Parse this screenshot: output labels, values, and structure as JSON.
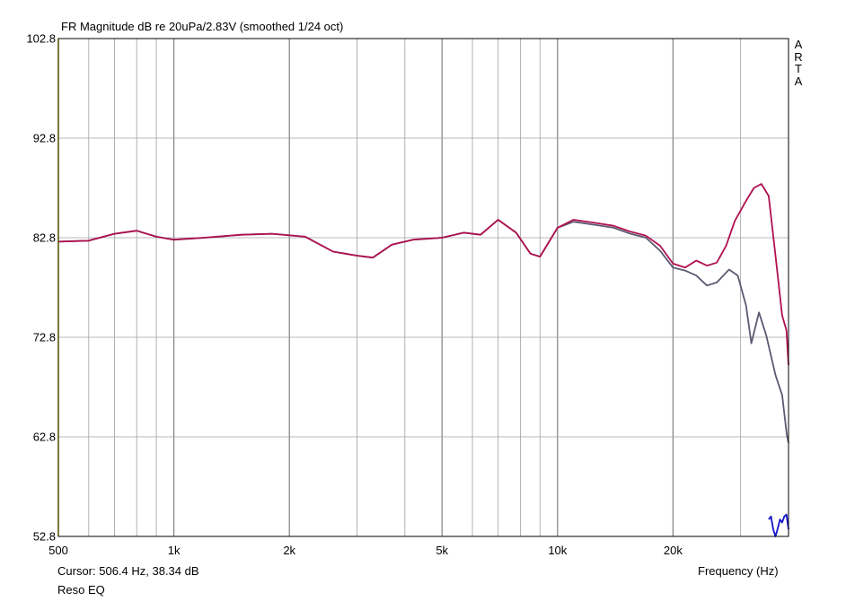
{
  "chart_data": {
    "type": "line",
    "title": "FR Magnitude dB re 20uPa/2.83V (smoothed 1/24 oct)",
    "xlabel": "Frequency (Hz)",
    "ylabel": "",
    "xscale": "log",
    "xlim": [
      500,
      40000
    ],
    "ylim": [
      52.8,
      102.8
    ],
    "x_ticks": [
      500,
      1000,
      2000,
      5000,
      10000,
      20000
    ],
    "x_tick_labels": [
      "500",
      "1k",
      "2k",
      "5k",
      "10k",
      "20k"
    ],
    "y_ticks": [
      52.8,
      62.8,
      72.8,
      82.8,
      92.8,
      102.8
    ],
    "y_tick_labels": [
      "52.8",
      "62.8",
      "72.8",
      "82.8",
      "92.8",
      "102.8"
    ],
    "grid": true,
    "series": [
      {
        "color": "#5a5a72",
        "x": [
          500,
          600,
          700,
          800,
          900,
          1000,
          1200,
          1500,
          1800,
          2200,
          2600,
          3000,
          3300,
          3700,
          4200,
          5000,
          5700,
          6300,
          7000,
          7800,
          8500,
          9000,
          10000,
          11000,
          12500,
          14000,
          15500,
          17000,
          18500,
          20000,
          21500,
          23000,
          24500,
          26000,
          28000,
          29500,
          31000,
          32000,
          33500,
          35000,
          37000,
          38500,
          39600,
          40000
        ],
        "y": [
          82.4,
          82.5,
          83.2,
          83.5,
          82.9,
          82.6,
          82.8,
          83.1,
          83.2,
          82.9,
          81.4,
          81.0,
          80.8,
          82.1,
          82.6,
          82.8,
          83.3,
          83.1,
          84.6,
          83.3,
          81.2,
          80.9,
          83.8,
          84.4,
          84.1,
          83.8,
          83.2,
          82.8,
          81.5,
          79.8,
          79.5,
          79.0,
          78.0,
          78.3,
          79.6,
          79.0,
          76.0,
          72.2,
          75.3,
          73.0,
          69.0,
          67.0,
          63.0,
          62.2
        ]
      },
      {
        "color": "#b01050",
        "x": [
          500,
          600,
          700,
          800,
          900,
          1000,
          1200,
          1500,
          1800,
          2200,
          2600,
          3000,
          3300,
          3700,
          4200,
          5000,
          5700,
          6300,
          7000,
          7800,
          8500,
          9000,
          10000,
          11000,
          12500,
          14000,
          15500,
          17000,
          18500,
          20000,
          21500,
          23000,
          24500,
          26000,
          27500,
          29000,
          31000,
          32500,
          34000,
          35500,
          37000,
          38500,
          39500,
          40000
        ],
        "y": [
          82.4,
          82.5,
          83.2,
          83.5,
          82.9,
          82.6,
          82.8,
          83.1,
          83.2,
          82.9,
          81.4,
          81.0,
          80.8,
          82.1,
          82.6,
          82.8,
          83.3,
          83.1,
          84.6,
          83.3,
          81.2,
          80.9,
          83.8,
          84.6,
          84.3,
          84.0,
          83.4,
          83.0,
          82.0,
          80.2,
          79.8,
          80.5,
          80.0,
          80.3,
          82.0,
          84.5,
          86.5,
          87.8,
          88.2,
          87.0,
          81.0,
          75.0,
          73.5,
          70.0
        ]
      },
      {
        "color": "#1414cc",
        "x": [
          35500,
          36000,
          36500,
          37000,
          37500,
          38000,
          38500,
          39000,
          39500,
          40000
        ],
        "y": [
          54.5,
          54.8,
          53.5,
          52.8,
          53.6,
          54.5,
          54.2,
          54.8,
          55.0,
          53.5
        ]
      },
      {
        "color": "#e6e600",
        "x": [
          500,
          500
        ],
        "y": [
          52.8,
          102.8
        ]
      }
    ]
  },
  "footer": {
    "cursor": "Cursor: 506.4 Hz, 38.34 dB",
    "label": "Reso EQ"
  },
  "watermark": "ARTA",
  "colors": {
    "grid": "#a0a0a0",
    "frame": "#000000"
  }
}
